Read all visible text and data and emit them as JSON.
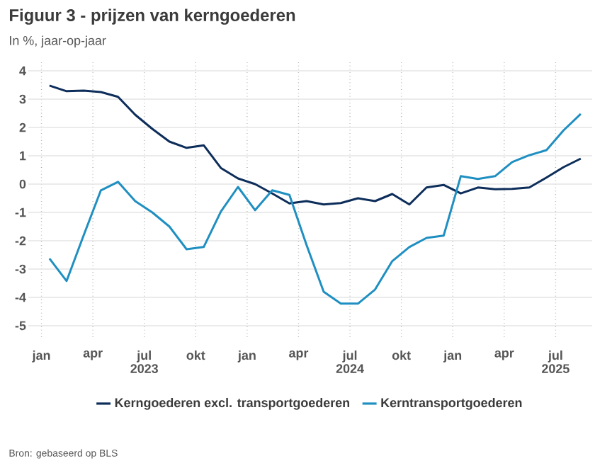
{
  "chart_data": {
    "type": "line",
    "title": "Figuur 3 - prijzen van kerngoederen",
    "subtitle": "In %, jaar-op-jaar",
    "x": [
      "2023-01-15",
      "2023-02-15",
      "2023-03-15",
      "2023-04-15",
      "2023-05-15",
      "2023-06-15",
      "2023-07-15",
      "2023-08-15",
      "2023-09-15",
      "2023-10-15",
      "2023-11-15",
      "2023-12-15",
      "2024-01-15",
      "2024-02-15",
      "2024-03-15",
      "2024-04-15",
      "2024-05-15",
      "2024-06-15",
      "2024-07-15",
      "2024-08-15",
      "2024-09-15",
      "2024-10-15",
      "2024-11-15",
      "2024-12-15",
      "2025-01-15",
      "2025-02-15",
      "2025-03-15",
      "2025-04-15",
      "2025-05-15",
      "2025-06-15",
      "2025-07-15",
      "2025-08-15"
    ],
    "series": [
      {
        "name": "Kerngoederen excl. transportgoederen",
        "color": "#0d2d5a",
        "values": [
          3.48,
          3.28,
          3.3,
          3.25,
          3.08,
          2.45,
          1.95,
          1.5,
          1.28,
          1.37,
          0.57,
          0.2,
          0.0,
          -0.33,
          -0.68,
          -0.6,
          -0.72,
          -0.67,
          -0.5,
          -0.6,
          -0.35,
          -0.72,
          -0.12,
          -0.03,
          -0.33,
          -0.12,
          -0.18,
          -0.17,
          -0.12,
          0.23,
          0.6,
          0.9
        ]
      },
      {
        "name": "Kerntransportgoederen",
        "color": "#1f8fc1",
        "values": [
          -2.63,
          -3.42,
          -1.8,
          -0.22,
          0.08,
          -0.6,
          -1.0,
          -1.5,
          -2.3,
          -2.22,
          -0.97,
          -0.1,
          -0.92,
          -0.22,
          -0.38,
          -2.15,
          -3.8,
          -4.22,
          -4.22,
          -3.72,
          -2.72,
          -2.22,
          -1.9,
          -1.82,
          0.28,
          0.18,
          0.28,
          0.78,
          1.02,
          1.2,
          1.9,
          2.48
        ]
      }
    ],
    "xlim": [
      "2022-12-08",
      "2025-09-05"
    ],
    "xticks": [
      {
        "value": "2023-01-01",
        "label": "jan"
      },
      {
        "value": "2023-04-01",
        "label": "apr"
      },
      {
        "value": "2023-07-01",
        "label": "jul"
      },
      {
        "value": "2023-10-01",
        "label": "okt"
      },
      {
        "value": "2024-01-01",
        "label": "jan"
      },
      {
        "value": "2024-04-01",
        "label": "apr"
      },
      {
        "value": "2024-07-01",
        "label": "jul"
      },
      {
        "value": "2024-10-01",
        "label": "okt"
      },
      {
        "value": "2025-01-01",
        "label": "jan"
      },
      {
        "value": "2025-04-01",
        "label": "apr"
      },
      {
        "value": "2025-07-01",
        "label": "jul"
      }
    ],
    "ylim": [
      -5.4,
      4.3
    ],
    "yticks": [
      -5,
      -4,
      -3,
      -2,
      -1,
      0,
      1,
      2,
      3,
      4
    ],
    "grid": true,
    "legend": "bottom",
    "marker": "none",
    "line_style": "solid",
    "annotations": [
      "2023",
      "2024",
      "2025",
      "Bron: gebaseerd op BLS"
    ]
  }
}
